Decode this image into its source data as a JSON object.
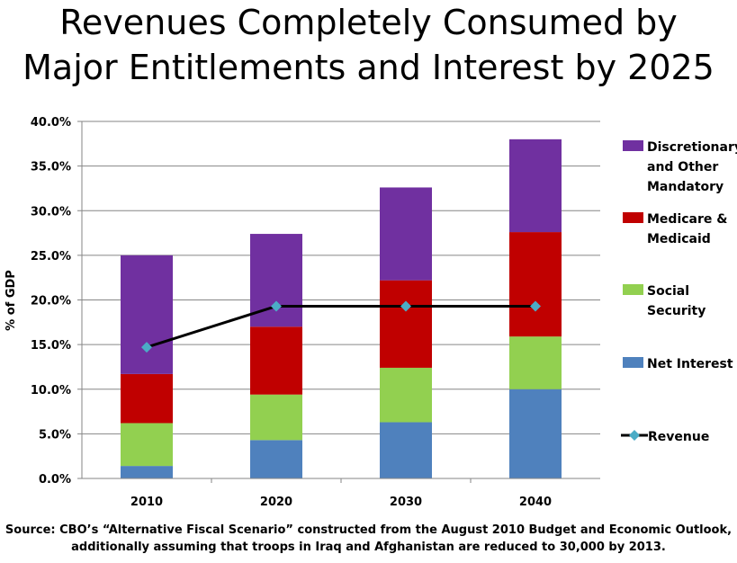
{
  "title_lines": [
    "Revenues Completely Consumed by",
    "Major Entitlements and Interest by 2025"
  ],
  "source_lines": [
    "Source: CBO’s “Alternative Fiscal Scenario” constructed from the August 2010 Budget and Economic Outlook,",
    "additionally assuming that troops in Iraq and Afghanistan are reduced to 30,000 by 2013."
  ],
  "chart_data": {
    "type": "bar",
    "stacked": true,
    "title": "Revenues Completely Consumed by Major Entitlements and Interest by 2025",
    "xlabel": "",
    "ylabel": "% of GDP",
    "ylim": [
      0,
      40
    ],
    "yticks": [
      "0.0%",
      "5.0%",
      "10.0%",
      "15.0%",
      "20.0%",
      "25.0%",
      "30.0%",
      "35.0%",
      "40.0%"
    ],
    "categories": [
      "2010",
      "2020",
      "2030",
      "2040"
    ],
    "series": [
      {
        "name": "Net Interest",
        "color": "#4f81bd",
        "values": [
          1.4,
          4.3,
          6.3,
          10.0
        ]
      },
      {
        "name": "Social Security",
        "color": "#92d050",
        "values": [
          4.8,
          5.1,
          6.1,
          5.9
        ]
      },
      {
        "name": "Medicare & Medicaid",
        "color": "#c00000",
        "values": [
          5.5,
          7.6,
          9.8,
          11.7
        ]
      },
      {
        "name": "Discretionary and Other Mandatory",
        "color": "#7030a0",
        "values": [
          13.3,
          10.4,
          10.4,
          10.4
        ]
      }
    ],
    "line_series": {
      "name": "Revenue",
      "color": "#000000",
      "marker_color": "#4bacc6",
      "values": [
        14.7,
        19.3,
        19.3,
        19.3
      ]
    },
    "legend": {
      "position": "right",
      "items": [
        {
          "lines": [
            "Discretionary",
            "and Other",
            "Mandatory"
          ],
          "color": "#7030a0",
          "kind": "box"
        },
        {
          "lines": [
            "Medicare &",
            "Medicaid"
          ],
          "color": "#c00000",
          "kind": "box"
        },
        {
          "lines": [
            "Social",
            "Security"
          ],
          "color": "#92d050",
          "kind": "box"
        },
        {
          "lines": [
            "Net Interest"
          ],
          "color": "#4f81bd",
          "kind": "box"
        },
        {
          "lines": [
            "Revenue"
          ],
          "color": "#4bacc6",
          "kind": "line"
        }
      ]
    },
    "grid": true
  }
}
